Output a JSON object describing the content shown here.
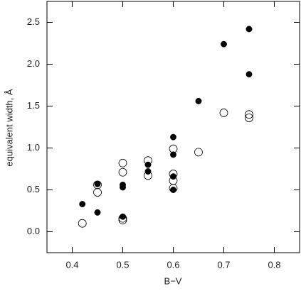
{
  "chart_data": {
    "type": "scatter",
    "x_label": "B−V",
    "y_label": "equivalent width, Å",
    "xlim": [
      0.35,
      0.85
    ],
    "xticks": [
      0.4,
      0.5,
      0.6,
      0.7,
      0.8
    ],
    "ylim": [
      -0.25,
      2.75
    ],
    "yticks": [
      {
        "value": 0,
        "label": "0.0"
      },
      0.5,
      {
        "value": 1,
        "label": "1.0"
      },
      1.5,
      {
        "value": 2,
        "label": "2.0"
      },
      2.5
    ],
    "series": [
      {
        "color": "#000000",
        "filled": true,
        "x": [
          0.42,
          0.45,
          0.45,
          0.5,
          0.5,
          0.5,
          0.55,
          0.55,
          0.6,
          0.6,
          0.6,
          0.6,
          0.65,
          0.7,
          0.75,
          0.75
        ],
        "values": [
          0.33,
          0.57,
          0.23,
          0.56,
          0.53,
          0.18,
          0.8,
          0.72,
          1.13,
          0.92,
          0.66,
          0.5,
          1.56,
          2.24,
          2.42,
          1.88
        ]
      },
      {
        "color": "#000000",
        "filled": false,
        "x": [
          0.42,
          0.45,
          0.45,
          0.5,
          0.5,
          0.5,
          0.5,
          0.55,
          0.55,
          0.6,
          0.6,
          0.6,
          0.6,
          0.65,
          0.7,
          0.75,
          0.75
        ],
        "values": [
          0.1,
          0.56,
          0.47,
          0.82,
          0.71,
          0.16,
          0.14,
          0.85,
          0.67,
          0.99,
          0.69,
          0.61,
          0.52,
          0.95,
          1.42,
          1.4,
          1.36
        ]
      }
    ]
  }
}
